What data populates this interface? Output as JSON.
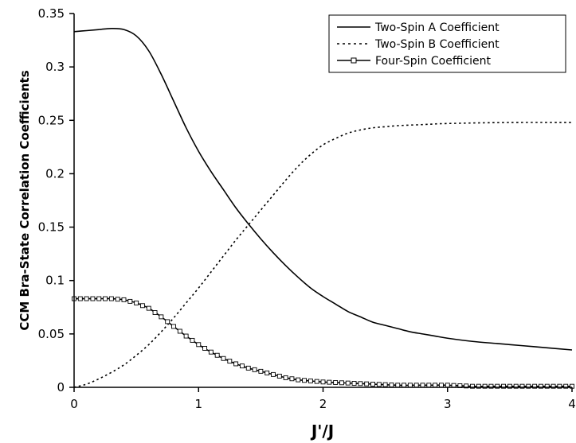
{
  "chart_data": {
    "type": "line",
    "xlabel": "J'/J",
    "ylabel": "CCM Bra-State Correlation Coefficients",
    "xlim": [
      0,
      4
    ],
    "ylim": [
      0,
      0.35
    ],
    "xticks": [
      "0",
      "1",
      "2",
      "3",
      "4"
    ],
    "yticks": [
      "0",
      "0.05",
      "0.1",
      "0.15",
      "0.2",
      "0.25",
      "0.3",
      "0.35"
    ],
    "legend_position": "top-right",
    "series": [
      {
        "name": "Two-Spin A Coefficient",
        "style": "solid",
        "x": [
          0,
          0.1,
          0.2,
          0.3,
          0.4,
          0.5,
          0.6,
          0.7,
          0.8,
          0.9,
          1.0,
          1.1,
          1.2,
          1.3,
          1.4,
          1.5,
          1.6,
          1.7,
          1.8,
          1.9,
          2.0,
          2.1,
          2.2,
          2.3,
          2.4,
          2.5,
          2.6,
          2.7,
          2.8,
          2.9,
          3.0,
          3.2,
          3.4,
          3.6,
          3.8,
          4.0
        ],
        "y": [
          0.333,
          0.334,
          0.335,
          0.336,
          0.335,
          0.329,
          0.315,
          0.293,
          0.268,
          0.243,
          0.221,
          0.202,
          0.185,
          0.168,
          0.153,
          0.139,
          0.126,
          0.114,
          0.103,
          0.093,
          0.085,
          0.078,
          0.071,
          0.066,
          0.061,
          0.058,
          0.055,
          0.052,
          0.05,
          0.048,
          0.046,
          0.043,
          0.041,
          0.039,
          0.037,
          0.035
        ]
      },
      {
        "name": "Two-Spin B Coefficient",
        "style": "dotted",
        "x": [
          0,
          0.1,
          0.2,
          0.3,
          0.4,
          0.5,
          0.6,
          0.7,
          0.8,
          0.9,
          1.0,
          1.1,
          1.2,
          1.3,
          1.4,
          1.5,
          1.6,
          1.7,
          1.8,
          1.9,
          2.0,
          2.1,
          2.2,
          2.3,
          2.4,
          2.5,
          2.6,
          2.8,
          3.0,
          3.5,
          4.0
        ],
        "y": [
          0.0,
          0.003,
          0.008,
          0.014,
          0.021,
          0.03,
          0.04,
          0.052,
          0.065,
          0.079,
          0.093,
          0.108,
          0.123,
          0.138,
          0.152,
          0.166,
          0.18,
          0.194,
          0.207,
          0.218,
          0.227,
          0.233,
          0.238,
          0.241,
          0.243,
          0.244,
          0.245,
          0.246,
          0.247,
          0.248,
          0.248
        ]
      },
      {
        "name": "Four-Spin Coefficient",
        "style": "solid-square-markers",
        "x": [
          0,
          0.1,
          0.2,
          0.3,
          0.4,
          0.5,
          0.6,
          0.7,
          0.8,
          0.9,
          1.0,
          1.1,
          1.2,
          1.3,
          1.4,
          1.5,
          1.6,
          1.7,
          1.8,
          1.9,
          2.0,
          2.2,
          2.4,
          2.6,
          2.8,
          3.0,
          3.2,
          3.4,
          3.6,
          3.8,
          4.0
        ],
        "y": [
          0.083,
          0.083,
          0.083,
          0.083,
          0.082,
          0.079,
          0.074,
          0.066,
          0.057,
          0.048,
          0.04,
          0.033,
          0.027,
          0.022,
          0.018,
          0.015,
          0.012,
          0.009,
          0.007,
          0.006,
          0.005,
          0.004,
          0.003,
          0.002,
          0.002,
          0.002,
          0.001,
          0.001,
          0.001,
          0.001,
          0.001
        ]
      }
    ]
  }
}
